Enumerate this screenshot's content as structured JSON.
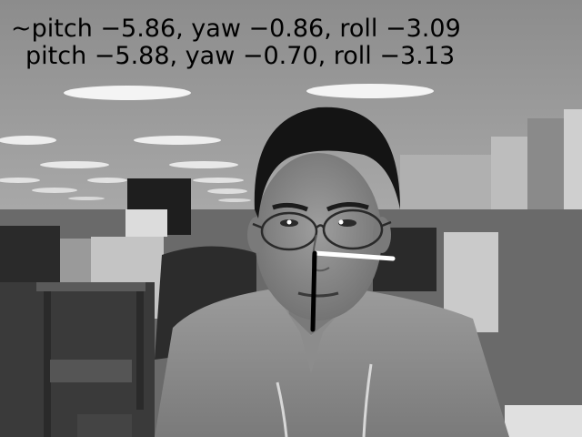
{
  "overlay": {
    "estimated_pose": "~pitch −5.86, yaw −0.86, roll −3.09",
    "measured_pose": "pitch −5.88, yaw −0.70, roll −3.13"
  },
  "pose_axes": {
    "yaw_axis_color": "#ffffff",
    "pitch_axis_color": "#000000"
  },
  "scene": {
    "description_tag": "grayscale-webcam-office"
  }
}
